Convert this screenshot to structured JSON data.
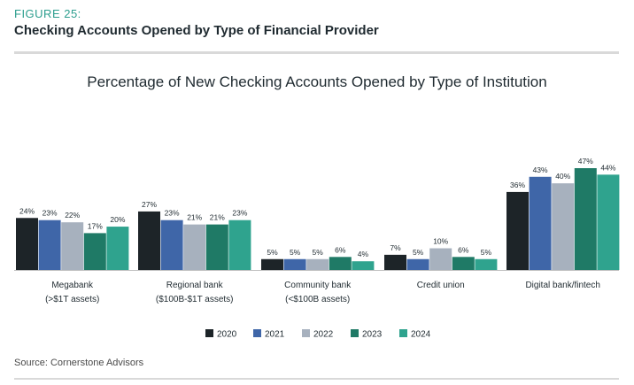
{
  "figure_label": "FIGURE 25:",
  "figure_title": "Checking Accounts Opened by Type of Financial Provider",
  "source": "Source: Cornerstone Advisors",
  "chart_data": {
    "type": "bar",
    "title": "Percentage of New Checking Accounts Opened by Type of Institution",
    "categories": [
      [
        "Megabank",
        "(>$1T assets)"
      ],
      [
        "Regional bank",
        "($100B-$1T assets)"
      ],
      [
        "Community bank",
        "(<$100B assets)"
      ],
      [
        "Credit union"
      ],
      [
        "Digital bank/fintech"
      ]
    ],
    "series": [
      {
        "name": "2020",
        "color": "#1d2428",
        "values": [
          24,
          27,
          5,
          7,
          36
        ]
      },
      {
        "name": "2021",
        "color": "#3f66a8",
        "values": [
          23,
          23,
          5,
          5,
          43
        ]
      },
      {
        "name": "2022",
        "color": "#a7b1be",
        "values": [
          22,
          21,
          5,
          10,
          40
        ]
      },
      {
        "name": "2023",
        "color": "#1f7a66",
        "values": [
          17,
          21,
          6,
          6,
          47
        ]
      },
      {
        "name": "2024",
        "color": "#2fa38e",
        "values": [
          20,
          23,
          4,
          5,
          44
        ]
      }
    ],
    "ylim": [
      0,
      47
    ],
    "legend_position": "bottom",
    "grid": false,
    "value_suffix": "%"
  }
}
